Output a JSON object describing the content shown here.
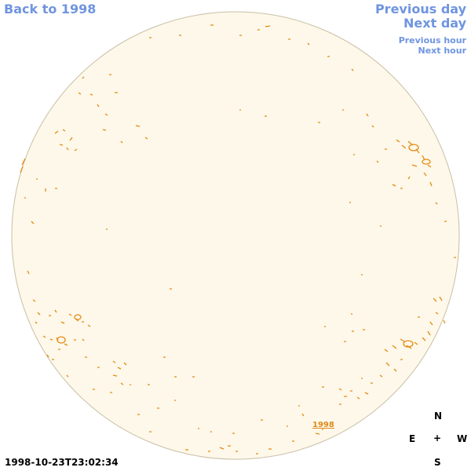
{
  "nav": {
    "back": "Back to 1998",
    "prev_day": "Previous day",
    "next_day": "Next day",
    "prev_hour": "Previous hour",
    "next_hour": "Next hour"
  },
  "timestamp": "1998-10-23T23:02:34",
  "year_label": "1998",
  "compass": {
    "north": "N",
    "south": "S",
    "east": "E",
    "west": "W",
    "center": "+"
  },
  "colors": {
    "disk_fill": "#fdf8e9",
    "disk_edge": "#c9bfa6",
    "feature": "#e58a12",
    "link": "#6f95e0"
  }
}
